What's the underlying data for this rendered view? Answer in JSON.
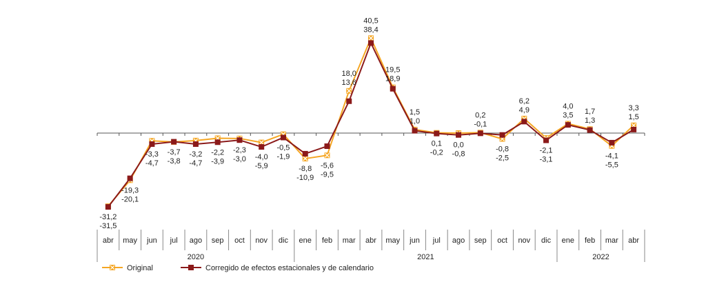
{
  "chart_data": {
    "type": "line",
    "title": "",
    "xlabel": "",
    "ylabel": "",
    "ylim": [
      -36,
      45
    ],
    "grid": false,
    "legend_position": "bottom-left",
    "categories": [
      "abr",
      "may",
      "jun",
      "jul",
      "ago",
      "sep",
      "oct",
      "nov",
      "dic",
      "ene",
      "feb",
      "mar",
      "abr",
      "may",
      "jun",
      "jul",
      "ago",
      "sep",
      "oct",
      "nov",
      "dic",
      "ene",
      "feb",
      "mar",
      "abr"
    ],
    "years": [
      {
        "label": "2020",
        "start": 0,
        "end": 8
      },
      {
        "label": "2021",
        "start": 9,
        "end": 20
      },
      {
        "label": "2022",
        "start": 21,
        "end": 24
      }
    ],
    "series": [
      {
        "name": "Original",
        "color": "#F5A623",
        "marker": "square-x",
        "values": [
          -31.2,
          -20.1,
          -3.3,
          -3.8,
          -3.2,
          -2.2,
          -2.3,
          -4.0,
          -0.5,
          -10.9,
          -9.5,
          18.0,
          40.5,
          19.5,
          1.5,
          0.1,
          0.0,
          0.2,
          -2.5,
          6.2,
          -2.1,
          4.0,
          1.7,
          -5.5,
          3.3
        ],
        "labels": [
          "-31,2",
          "-20,1",
          "-3,3",
          "-3,8",
          "-3,2",
          "-2,2",
          "-2,3",
          "-4,0",
          "-0,5",
          "-10,9",
          "-9,5",
          "18,0",
          "40,5",
          "19,5",
          "1,5",
          "0,1",
          "0,0",
          "0,2",
          "-2,5",
          "6,2",
          "-2,1",
          "4,0",
          "1,7",
          "-5,5",
          "3,3"
        ]
      },
      {
        "name": "Corregido de efectos estacionales y de calendario",
        "color": "#8B1A1A",
        "marker": "square",
        "values": [
          -31.5,
          -19.3,
          -4.7,
          -3.7,
          -4.7,
          -3.9,
          -3.0,
          -5.9,
          -1.9,
          -8.8,
          -5.6,
          13.6,
          38.4,
          18.9,
          1.0,
          -0.2,
          -0.8,
          -0.1,
          -0.8,
          4.9,
          -3.1,
          3.5,
          1.3,
          -4.1,
          1.5
        ],
        "labels": [
          "-31,5",
          "-19,3",
          "-4,7",
          "-3,7",
          "-4,7",
          "-3,9",
          "-3,0",
          "-5,9",
          "-1,9",
          "-8,8",
          "-5,6",
          "13,6",
          "38,4",
          "18,9",
          "1,0",
          "-0,2",
          "-0,8",
          "-0,1",
          "-0,8",
          "4,9",
          "-3,1",
          "3,5",
          "1,3",
          "-4,1",
          "1,5"
        ]
      }
    ]
  }
}
